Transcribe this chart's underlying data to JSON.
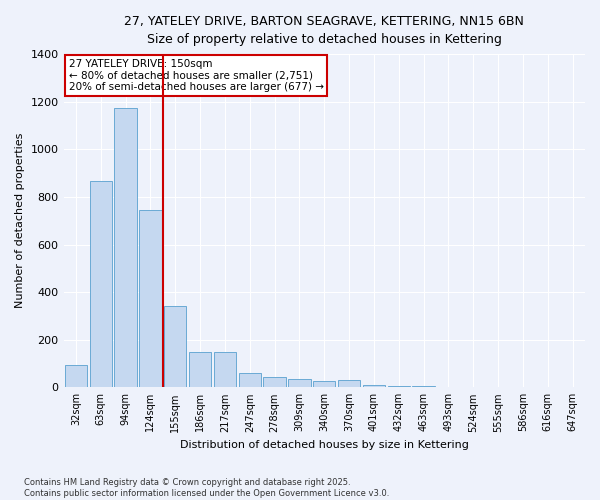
{
  "title_line1": "27, YATELEY DRIVE, BARTON SEAGRAVE, KETTERING, NN15 6BN",
  "title_line2": "Size of property relative to detached houses in Kettering",
  "xlabel": "Distribution of detached houses by size in Kettering",
  "ylabel": "Number of detached properties",
  "categories": [
    "32sqm",
    "63sqm",
    "94sqm",
    "124sqm",
    "155sqm",
    "186sqm",
    "217sqm",
    "247sqm",
    "278sqm",
    "309sqm",
    "340sqm",
    "370sqm",
    "401sqm",
    "432sqm",
    "463sqm",
    "493sqm",
    "524sqm",
    "555sqm",
    "586sqm",
    "616sqm",
    "647sqm"
  ],
  "values": [
    95,
    865,
    1175,
    745,
    340,
    150,
    150,
    60,
    45,
    35,
    25,
    30,
    10,
    5,
    5,
    0,
    0,
    0,
    0,
    0,
    0
  ],
  "bar_color": "#c5d8f0",
  "bar_edge_color": "#6aaad4",
  "red_line_x": 3.5,
  "red_line_color": "#cc0000",
  "annotation_title": "27 YATELEY DRIVE: 150sqm",
  "annotation_line1": "← 80% of detached houses are smaller (2,751)",
  "annotation_line2": "20% of semi-detached houses are larger (677) →",
  "annotation_box_color": "#ffffff",
  "annotation_box_edge_color": "#cc0000",
  "background_color": "#eef2fb",
  "grid_color": "#ffffff",
  "ylim": [
    0,
    1400
  ],
  "yticks": [
    0,
    200,
    400,
    600,
    800,
    1000,
    1200,
    1400
  ],
  "footer_line1": "Contains HM Land Registry data © Crown copyright and database right 2025.",
  "footer_line2": "Contains public sector information licensed under the Open Government Licence v3.0."
}
